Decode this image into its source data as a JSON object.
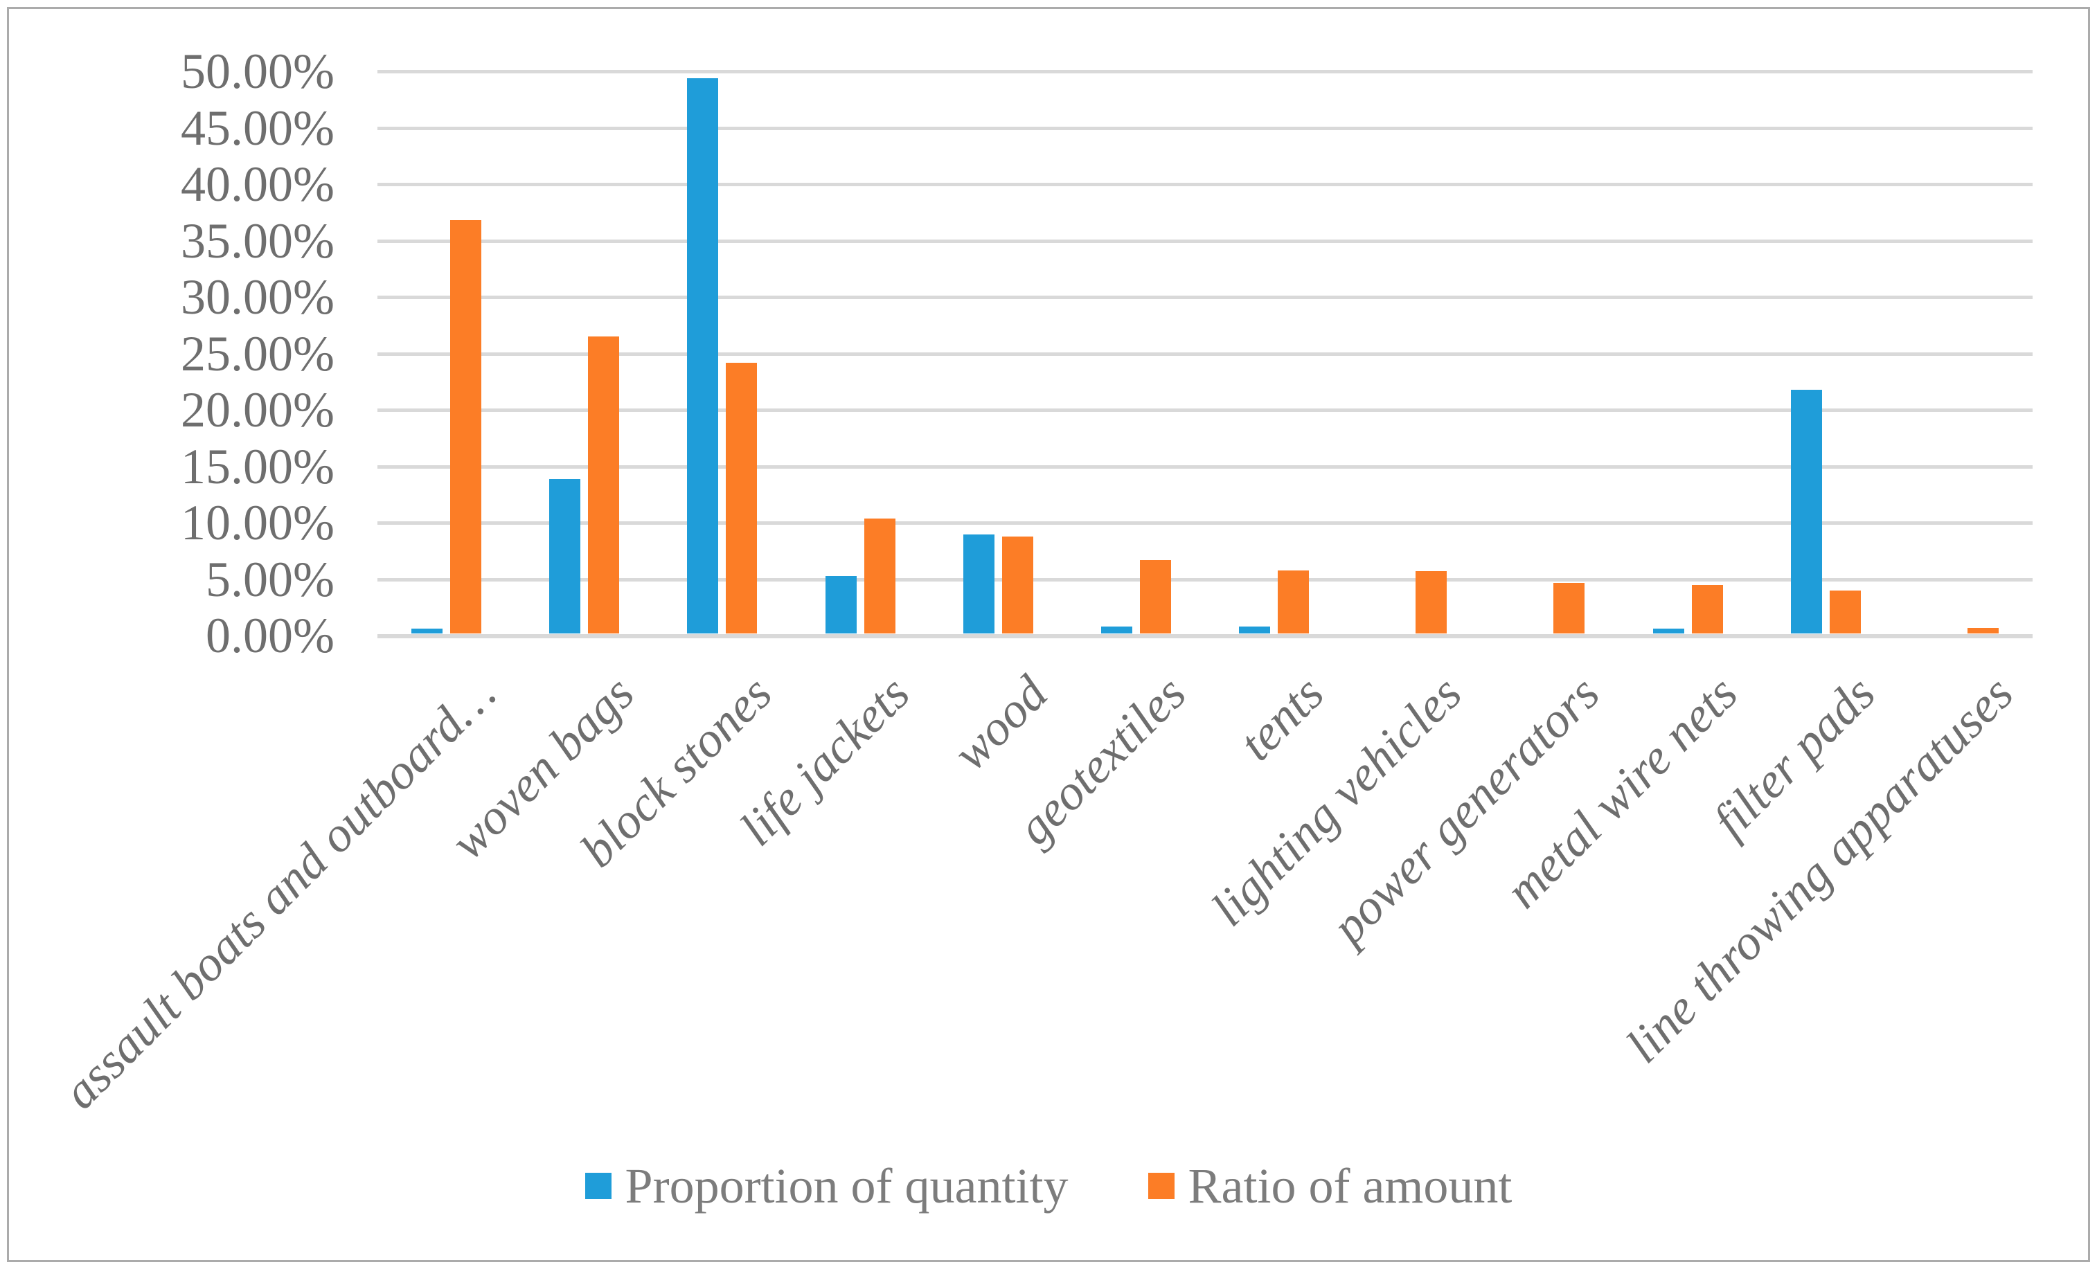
{
  "frame": {
    "background_color": "#FFFFFF",
    "border_color": "#ABABAB"
  },
  "chart_data": {
    "type": "bar",
    "title": "",
    "xlabel": "",
    "ylabel": "",
    "categories": [
      "assault boats and outboard…",
      "woven bags",
      "block stones",
      "life jackets",
      "wood",
      "geotextiles",
      "tents",
      "lighting vehicles",
      "power generators",
      "metal wire nets",
      "filter pads",
      "line throwing apparatuses"
    ],
    "series": [
      {
        "name": "Proportion of quantity",
        "color": "#1F9DD9",
        "values": [
          0.4,
          13.7,
          49.2,
          5.1,
          8.8,
          0.6,
          0.6,
          0,
          0,
          0.4,
          21.6,
          0
        ]
      },
      {
        "name": "Ratio of amount",
        "color": "#FC7D26",
        "values": [
          36.6,
          26.3,
          24.0,
          10.2,
          8.6,
          6.5,
          5.6,
          5.5,
          4.5,
          4.3,
          3.8,
          0.5
        ]
      }
    ],
    "ylim": [
      0,
      50
    ],
    "ytick_step": 5,
    "ytick_labels": [
      "0.00%",
      "5.00%",
      "10.00%",
      "15.00%",
      "20.00%",
      "25.00%",
      "30.00%",
      "35.00%",
      "40.00%",
      "45.00%",
      "50.00%"
    ],
    "grid": true,
    "gridline_color": "#D9D9D9",
    "axis_text_color": "#6E6E6E",
    "legend_position": "bottom",
    "x_label_rotation_deg": 45,
    "x_label_style": "italic"
  }
}
